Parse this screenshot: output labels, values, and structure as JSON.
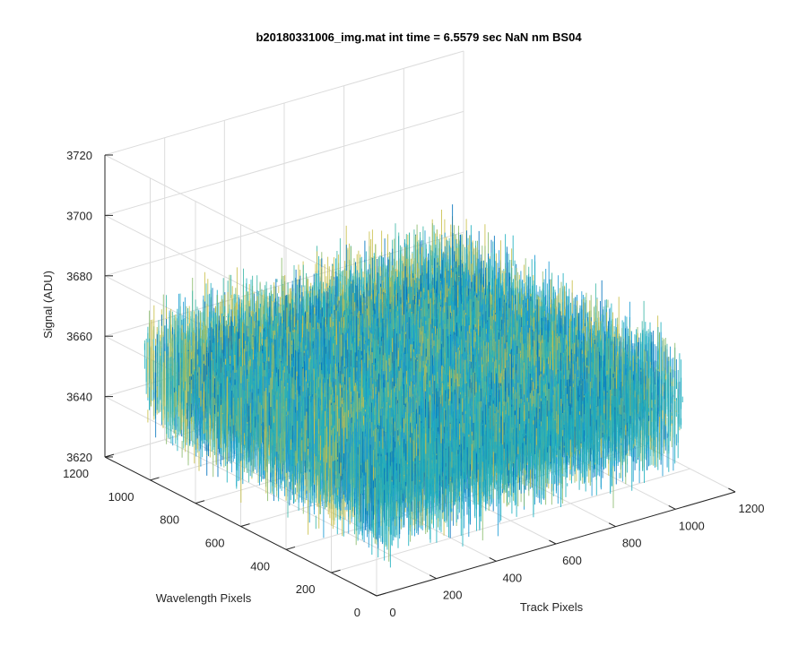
{
  "chart_data": {
    "type": "surface3d",
    "title": "b20180331006_img.mat int time = 6.5579 sec  NaN nm BS04",
    "xlabel": "Track Pixels",
    "ylabel": "Wavelength Pixels",
    "zlabel": "Signal (ADU)",
    "xlim": [
      0,
      1200
    ],
    "ylim": [
      0,
      1200
    ],
    "zlim": [
      3620,
      3720
    ],
    "x_ticks": [
      "0",
      "200",
      "400",
      "600",
      "800",
      "1000",
      "1200"
    ],
    "y_ticks": [
      "0",
      "200",
      "400",
      "600",
      "800",
      "1000",
      "1200"
    ],
    "z_ticks": [
      "3620",
      "3640",
      "3660",
      "3680",
      "3700",
      "3720"
    ],
    "surface": {
      "x_range": [
        0,
        1024
      ],
      "y_range": [
        0,
        1024
      ],
      "mean_signal": 3655,
      "noise_range": [
        3625,
        3705
      ],
      "colormap": [
        "#0072BD",
        "#1b9ad4",
        "#1fb0c0",
        "#40b8a8",
        "#8cbc6e",
        "#c9bf4a"
      ]
    },
    "grid": true,
    "view": "3d-default"
  }
}
